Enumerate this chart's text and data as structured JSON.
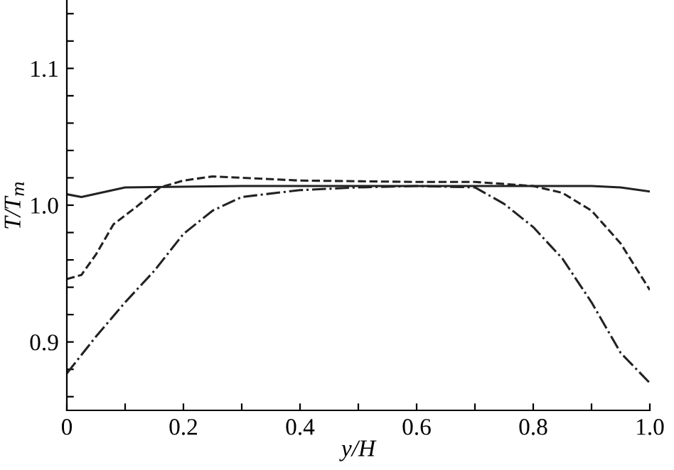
{
  "chart_data": {
    "type": "line",
    "xlabel": "y/H",
    "ylabel": "T/T$_{m}$",
    "xlim": [
      0,
      1.0
    ],
    "ylim": [
      0.85,
      1.15
    ],
    "xticks": [
      0,
      {
        "value": 0.1,
        "label": null
      },
      {
        "value": 0.2,
        "label": "0.2"
      },
      {
        "value": 0.3,
        "label": null
      },
      {
        "value": 0.4,
        "label": "0.4"
      },
      {
        "value": 0.5,
        "label": null
      },
      {
        "value": 0.6,
        "label": "0.6"
      },
      {
        "value": 0.7,
        "label": null
      },
      {
        "value": 0.8,
        "label": "0.8"
      },
      {
        "value": 0.9,
        "label": null
      },
      {
        "value": 1.0,
        "label": "1.0"
      }
    ],
    "yticks": [
      {
        "value": 0.86,
        "label": null
      },
      {
        "value": 0.88,
        "label": null
      },
      {
        "value": 0.9,
        "label": "0.9"
      },
      {
        "value": 0.92,
        "label": null
      },
      {
        "value": 0.94,
        "label": null
      },
      {
        "value": 0.96,
        "label": null
      },
      {
        "value": 0.98,
        "label": null
      },
      {
        "value": 1.0,
        "label": "1.0"
      },
      {
        "value": 1.02,
        "label": null
      },
      {
        "value": 1.04,
        "label": null
      },
      {
        "value": 1.06,
        "label": null
      },
      {
        "value": 1.08,
        "label": null
      },
      {
        "value": 1.1,
        "label": "1.1"
      },
      {
        "value": 1.12,
        "label": null
      },
      {
        "value": 1.14,
        "label": null
      }
    ],
    "grid": false,
    "legend": false,
    "marker": "none",
    "series": [
      {
        "color": "#222222",
        "line_style": "solid",
        "x": [
          0,
          0.025,
          0.1,
          0.3,
          0.6,
          0.9,
          0.95,
          1.0
        ],
        "values": [
          1.008,
          1.006,
          1.013,
          1.014,
          1.014,
          1.014,
          1.013,
          1.01
        ]
      },
      {
        "color": "#222222",
        "line_style": "dashed",
        "x": [
          0,
          0.025,
          0.05,
          0.08,
          0.12,
          0.16,
          0.2,
          0.25,
          0.3,
          0.4,
          0.6,
          0.7,
          0.8,
          0.85,
          0.9,
          0.95,
          1.0
        ],
        "values": [
          0.946,
          0.949,
          0.964,
          0.986,
          0.999,
          1.013,
          1.018,
          1.021,
          1.02,
          1.018,
          1.017,
          1.017,
          1.014,
          1.009,
          0.996,
          0.972,
          0.938
        ]
      },
      {
        "color": "#222222",
        "line_style": "dashdot",
        "x": [
          0,
          0.05,
          0.1,
          0.15,
          0.2,
          0.25,
          0.3,
          0.4,
          0.5,
          0.6,
          0.7,
          0.75,
          0.8,
          0.85,
          0.9,
          0.95,
          1.0
        ],
        "values": [
          0.877,
          0.904,
          0.929,
          0.952,
          0.979,
          0.996,
          1.006,
          1.011,
          1.013,
          1.014,
          1.013,
          1.001,
          0.984,
          0.961,
          0.929,
          0.892,
          0.87
        ]
      }
    ]
  }
}
